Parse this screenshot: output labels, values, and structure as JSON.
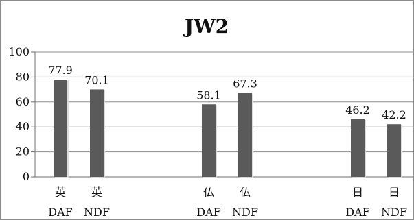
{
  "chart_data": {
    "type": "bar",
    "title": "JW2",
    "categories": [
      [
        "英",
        "DAF"
      ],
      [
        "英",
        "NDF"
      ],
      [
        "仏",
        "DAF"
      ],
      [
        "仏",
        "NDF"
      ],
      [
        "日",
        "DAF"
      ],
      [
        "日",
        "NDF"
      ]
    ],
    "values": [
      77.9,
      70.1,
      58.1,
      67.3,
      46.2,
      42.2
    ],
    "value_labels": [
      "77.9",
      "70.1",
      "58.1",
      "67.3",
      "46.2",
      "42.2"
    ],
    "ylim": [
      0,
      100
    ],
    "yticks": [
      "0",
      "20",
      "40",
      "60",
      "80",
      "100"
    ],
    "grid": true,
    "bar_color": "#5a5a5a",
    "grid_color": "#8e8e8e"
  }
}
